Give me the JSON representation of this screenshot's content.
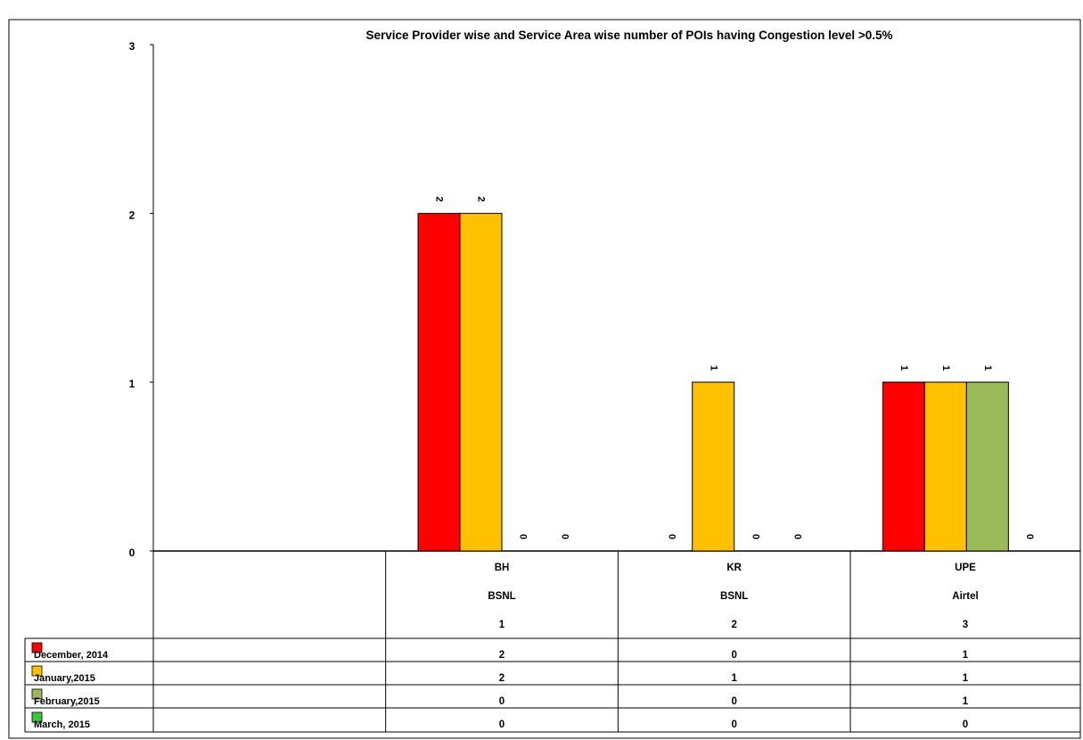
{
  "chart_data": {
    "type": "bar",
    "title": "Service Provider wise and Service Area wise number of POIs having Congestion level  >0.5%",
    "xlabel": "",
    "ylabel": "",
    "ylim": [
      0,
      3
    ],
    "yticks": [
      "0",
      "1",
      "2",
      "3"
    ],
    "grid": false,
    "legend": "table-left",
    "categories": [
      {
        "area": "BH",
        "provider": "BSNL",
        "index": "1"
      },
      {
        "area": "KR",
        "provider": "BSNL",
        "index": "2"
      },
      {
        "area": "UPE",
        "provider": "Airtel",
        "index": "3"
      }
    ],
    "series": [
      {
        "name": "December, 2014",
        "color": "#ff0000",
        "values": [
          2,
          0,
          1
        ]
      },
      {
        "name": "January,2015",
        "color": "#ffc000",
        "values": [
          2,
          1,
          1
        ]
      },
      {
        "name": "February,2015",
        "color": "#9bbb59",
        "values": [
          0,
          0,
          1
        ]
      },
      {
        "name": "March, 2015",
        "color": "#33cc33",
        "values": [
          0,
          0,
          0
        ]
      }
    ]
  }
}
